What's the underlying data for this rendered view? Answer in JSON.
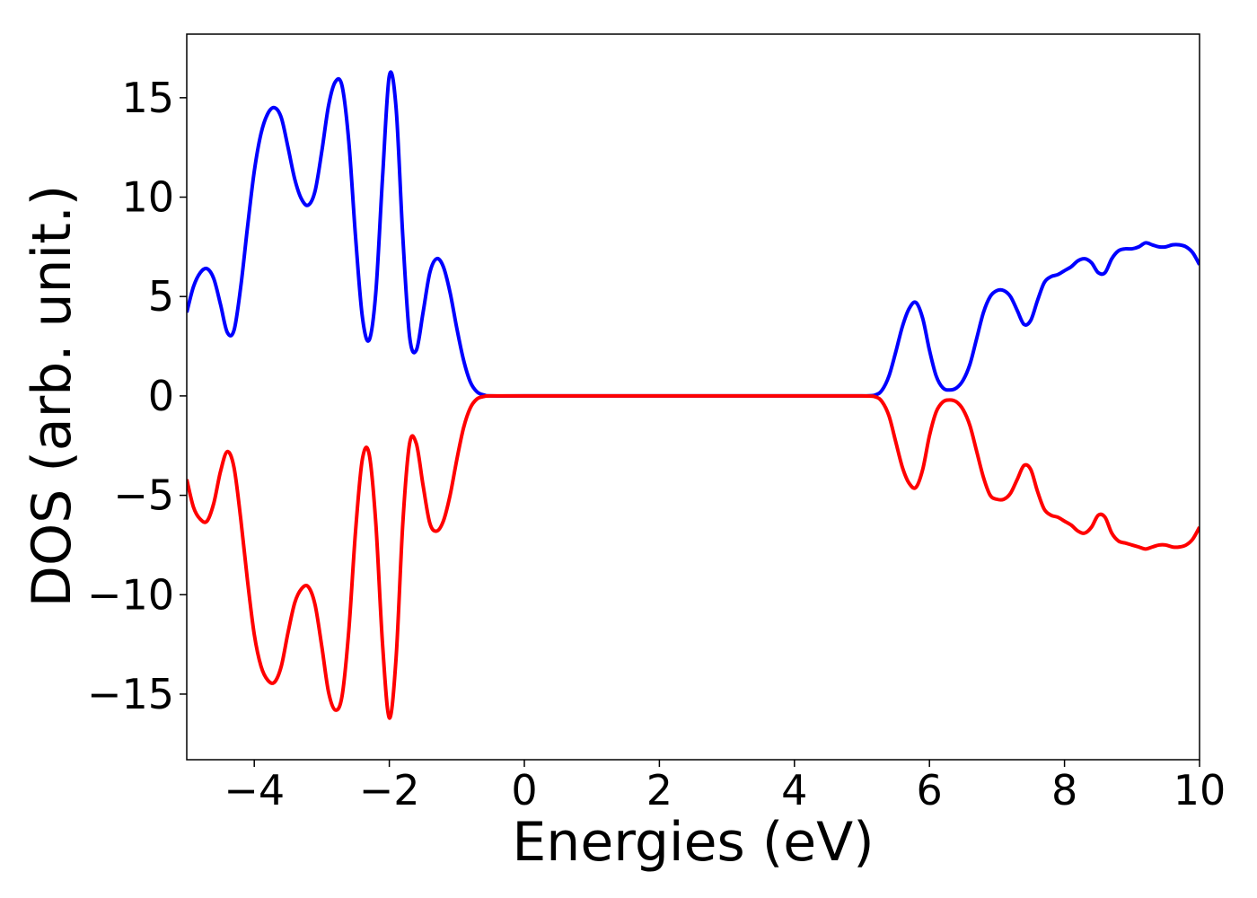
{
  "chart_data": {
    "type": "line",
    "xlabel": "Energies (eV)",
    "ylabel": "DOS (arb. unit.)",
    "x": [
      -5.0,
      -4.9,
      -4.8,
      -4.7,
      -4.6,
      -4.5,
      -4.4,
      -4.3,
      -4.2,
      -4.1,
      -4.0,
      -3.9,
      -3.8,
      -3.7,
      -3.6,
      -3.5,
      -3.4,
      -3.3,
      -3.2,
      -3.1,
      -3.0,
      -2.9,
      -2.8,
      -2.7,
      -2.6,
      -2.5,
      -2.4,
      -2.3,
      -2.2,
      -2.1,
      -2.0,
      -1.9,
      -1.8,
      -1.7,
      -1.6,
      -1.5,
      -1.4,
      -1.3,
      -1.2,
      -1.1,
      -1.0,
      -0.9,
      -0.8,
      -0.7,
      -0.6,
      -0.5,
      0,
      2,
      4,
      5.0,
      5.2,
      5.3,
      5.4,
      5.5,
      5.6,
      5.7,
      5.8,
      5.9,
      6.0,
      6.1,
      6.2,
      6.3,
      6.4,
      6.5,
      6.6,
      6.7,
      6.8,
      6.9,
      7.0,
      7.1,
      7.2,
      7.3,
      7.4,
      7.5,
      7.6,
      7.7,
      7.8,
      7.9,
      8.0,
      8.1,
      8.2,
      8.3,
      8.4,
      8.5,
      8.6,
      8.7,
      8.8,
      8.9,
      9.0,
      9.1,
      9.2,
      9.3,
      9.4,
      9.5,
      9.6,
      9.7,
      9.8,
      9.9,
      10.0
    ],
    "series": [
      {
        "color": "#0000ff",
        "values": [
          4.2,
          5.5,
          6.2,
          6.4,
          5.9,
          4.6,
          3.2,
          3.3,
          5.5,
          8.5,
          11.3,
          13.2,
          14.2,
          14.5,
          14.0,
          12.5,
          10.9,
          9.9,
          9.6,
          10.3,
          12.3,
          14.6,
          15.8,
          15.6,
          12.8,
          8.0,
          4.0,
          2.8,
          5.2,
          11.0,
          16.1,
          14.5,
          8.0,
          3.0,
          2.3,
          4.2,
          6.2,
          6.9,
          6.5,
          5.2,
          3.4,
          1.8,
          0.7,
          0.2,
          0.05,
          0,
          0,
          0,
          0,
          0,
          0.05,
          0.3,
          1.0,
          2.2,
          3.5,
          4.4,
          4.7,
          3.9,
          2.3,
          1.0,
          0.4,
          0.3,
          0.4,
          0.8,
          1.6,
          2.9,
          4.2,
          5.0,
          5.3,
          5.3,
          5.0,
          4.3,
          3.6,
          3.8,
          4.8,
          5.7,
          6.0,
          6.1,
          6.3,
          6.5,
          6.8,
          6.9,
          6.7,
          6.2,
          6.2,
          6.9,
          7.3,
          7.4,
          7.4,
          7.5,
          7.7,
          7.6,
          7.5,
          7.5,
          7.6,
          7.6,
          7.5,
          7.2,
          6.6
        ]
      },
      {
        "color": "#ff0000",
        "values": [
          -4.2,
          -5.6,
          -6.2,
          -6.3,
          -5.4,
          -3.8,
          -2.8,
          -3.6,
          -6.2,
          -9.3,
          -12.0,
          -13.6,
          -14.3,
          -14.4,
          -13.6,
          -11.9,
          -10.4,
          -9.7,
          -9.6,
          -10.5,
          -12.6,
          -14.9,
          -15.8,
          -15.1,
          -11.8,
          -6.8,
          -3.2,
          -2.9,
          -6.4,
          -12.5,
          -16.2,
          -13.2,
          -6.4,
          -2.4,
          -2.4,
          -4.5,
          -6.4,
          -6.8,
          -6.3,
          -5.0,
          -3.2,
          -1.6,
          -0.6,
          -0.15,
          -0.03,
          0,
          0,
          0,
          0,
          0,
          -0.05,
          -0.3,
          -1.0,
          -2.3,
          -3.6,
          -4.4,
          -4.6,
          -3.7,
          -2.0,
          -0.8,
          -0.3,
          -0.2,
          -0.3,
          -0.7,
          -1.5,
          -2.8,
          -4.1,
          -5.0,
          -5.2,
          -5.2,
          -4.9,
          -4.2,
          -3.5,
          -3.7,
          -4.8,
          -5.7,
          -6.0,
          -6.1,
          -6.3,
          -6.5,
          -6.8,
          -6.9,
          -6.6,
          -6.0,
          -6.1,
          -6.9,
          -7.3,
          -7.4,
          -7.5,
          -7.6,
          -7.7,
          -7.6,
          -7.5,
          -7.5,
          -7.6,
          -7.6,
          -7.5,
          -7.2,
          -6.6
        ]
      }
    ],
    "xlim": [
      -5,
      10
    ],
    "xticks": [
      {
        "value": -4,
        "label": "−4"
      },
      {
        "value": -2,
        "label": "−2"
      },
      0,
      2,
      4,
      6,
      8,
      10
    ],
    "ylim": [
      -18.3,
      18.2
    ],
    "yticks": [
      {
        "value": -15,
        "label": "−15"
      },
      {
        "value": -10,
        "label": "−10"
      },
      {
        "value": -5,
        "label": "−5"
      },
      0,
      5,
      10,
      15
    ]
  }
}
